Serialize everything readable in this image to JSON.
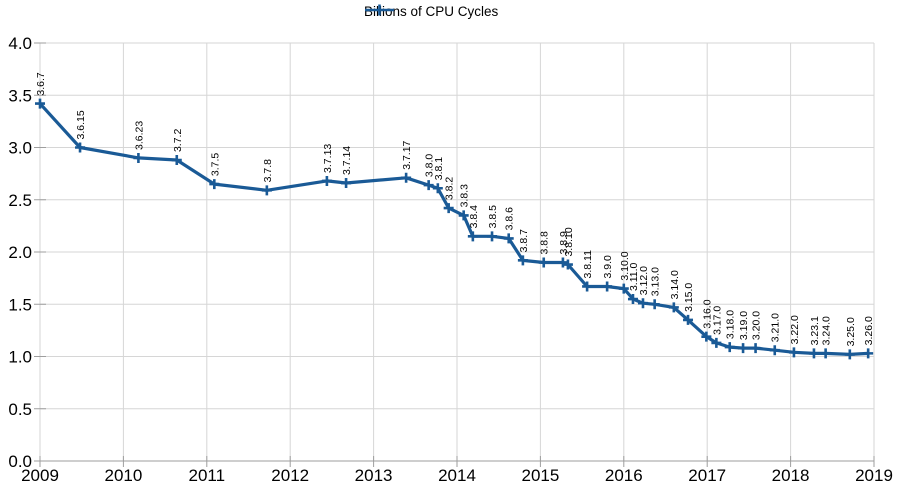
{
  "page": {
    "background_color": "#ffffff"
  },
  "chart_data": {
    "type": "line",
    "title": "",
    "legend_position": "top-center",
    "grid": true,
    "x_axis": {
      "min": 2009,
      "max": 2019,
      "ticks": [
        2009,
        2010,
        2011,
        2012,
        2013,
        2014,
        2015,
        2016,
        2017,
        2018,
        2019
      ]
    },
    "y_axis": {
      "min": 0,
      "max": 4,
      "tick_step": 0.5,
      "tick_labels": [
        "0.0",
        "0.5",
        "1.0",
        "1.5",
        "2.0",
        "2.5",
        "3.0",
        "3.5",
        "4.0"
      ]
    },
    "colors": {
      "series": "#1a5a96",
      "grid": "#d6d6d6",
      "axis": "#9e9e9e",
      "text": "#000000"
    },
    "series": [
      {
        "name": "Billions of CPU Cycles",
        "color": "#1a5a96",
        "marker": "plus",
        "points": [
          {
            "label": "3.6.7",
            "x": 2009.0,
            "y": 3.42
          },
          {
            "label": "3.6.15",
            "x": 2009.48,
            "y": 3.0
          },
          {
            "label": "3.6.23",
            "x": 2010.18,
            "y": 2.9
          },
          {
            "label": "3.7.2",
            "x": 2010.64,
            "y": 2.88
          },
          {
            "label": "3.7.5",
            "x": 2011.09,
            "y": 2.65
          },
          {
            "label": "3.7.8",
            "x": 2011.72,
            "y": 2.59
          },
          {
            "label": "3.7.13",
            "x": 2012.44,
            "y": 2.68
          },
          {
            "label": "3.7.14",
            "x": 2012.67,
            "y": 2.66
          },
          {
            "label": "3.7.17",
            "x": 2013.39,
            "y": 2.71
          },
          {
            "label": "3.8.0",
            "x": 2013.66,
            "y": 2.64
          },
          {
            "label": "3.8.1",
            "x": 2013.77,
            "y": 2.61
          },
          {
            "label": "3.8.2",
            "x": 2013.9,
            "y": 2.42
          },
          {
            "label": "3.8.3",
            "x": 2014.08,
            "y": 2.35
          },
          {
            "label": "3.8.4",
            "x": 2014.19,
            "y": 2.15
          },
          {
            "label": "3.8.5",
            "x": 2014.42,
            "y": 2.15
          },
          {
            "label": "3.8.6",
            "x": 2014.62,
            "y": 2.13
          },
          {
            "label": "3.8.7",
            "x": 2014.79,
            "y": 1.92
          },
          {
            "label": "3.8.8",
            "x": 2015.04,
            "y": 1.9
          },
          {
            "label": "3.8.9",
            "x": 2015.27,
            "y": 1.9
          },
          {
            "label": "3.8.10",
            "x": 2015.33,
            "y": 1.88
          },
          {
            "label": "3.8.11",
            "x": 2015.56,
            "y": 1.67
          },
          {
            "label": "3.9.0",
            "x": 2015.8,
            "y": 1.67
          },
          {
            "label": "3.10.0",
            "x": 2016.0,
            "y": 1.65
          },
          {
            "label": "3.11.0",
            "x": 2016.11,
            "y": 1.55
          },
          {
            "label": "3.12.0",
            "x": 2016.23,
            "y": 1.51
          },
          {
            "label": "3.13.0",
            "x": 2016.37,
            "y": 1.5
          },
          {
            "label": "3.14.0",
            "x": 2016.6,
            "y": 1.47
          },
          {
            "label": "3.15.0",
            "x": 2016.77,
            "y": 1.35
          },
          {
            "label": "3.16.0",
            "x": 2016.99,
            "y": 1.19
          },
          {
            "label": "3.17.0",
            "x": 2017.11,
            "y": 1.13
          },
          {
            "label": "3.18.0",
            "x": 2017.27,
            "y": 1.09
          },
          {
            "label": "3.19.0",
            "x": 2017.43,
            "y": 1.08
          },
          {
            "label": "3.20.0",
            "x": 2017.58,
            "y": 1.08
          },
          {
            "label": "3.21.0",
            "x": 2017.81,
            "y": 1.06
          },
          {
            "label": "3.22.0",
            "x": 2018.04,
            "y": 1.04
          },
          {
            "label": "3.23.1",
            "x": 2018.28,
            "y": 1.03
          },
          {
            "label": "3.24.0",
            "x": 2018.42,
            "y": 1.03
          },
          {
            "label": "3.25.0",
            "x": 2018.71,
            "y": 1.02
          },
          {
            "label": "3.26.0",
            "x": 2018.93,
            "y": 1.03
          }
        ]
      }
    ]
  }
}
